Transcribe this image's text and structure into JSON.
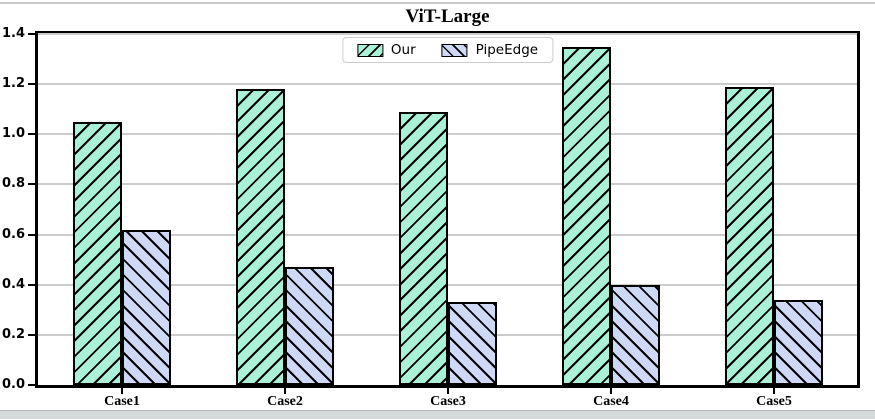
{
  "title": "ViT-Large",
  "chart_data": {
    "type": "bar",
    "title": "ViT-Large",
    "categories": [
      "Case1",
      "Case2",
      "Case3",
      "Case4",
      "Case5"
    ],
    "series": [
      {
        "name": "Our",
        "values": [
          1.05,
          1.18,
          1.09,
          1.35,
          1.19
        ],
        "fill": "#aaf1d8",
        "hatch": "/"
      },
      {
        "name": "PipeEdge",
        "values": [
          0.62,
          0.47,
          0.33,
          0.4,
          0.34
        ],
        "fill": "#cdd9f6",
        "hatch": "\\"
      }
    ],
    "xlabel": "",
    "ylabel": "",
    "ylim": [
      0,
      1.4
    ],
    "ytick_step": 0.2,
    "ytick_labels": [
      "0.0",
      "0.2",
      "0.4",
      "0.6",
      "0.8",
      "1.0",
      "1.2",
      "1.4"
    ],
    "grid": true,
    "grid_color": "#cccccc",
    "hatch_color": "#000000",
    "edge_color": "#000000",
    "legend_position": "top-center",
    "legend_entries": [
      "Our",
      "PipeEdge"
    ]
  }
}
